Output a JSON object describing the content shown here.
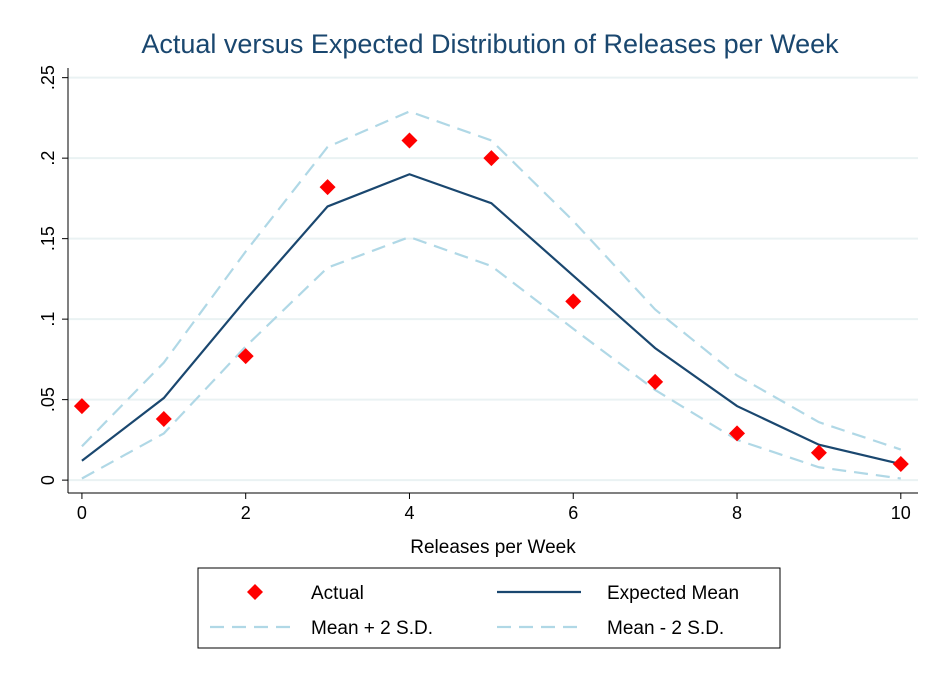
{
  "chart_data": {
    "type": "line",
    "title": "Actual versus Expected Distribution of Releases per Week",
    "x_label": "Releases per Week",
    "x": [
      0,
      1,
      2,
      3,
      4,
      5,
      6,
      7,
      8,
      9,
      10
    ],
    "series": [
      {
        "name": "Actual",
        "color": "#ff0000",
        "marker": "diamond",
        "values": [
          0.046,
          0.038,
          0.077,
          0.182,
          0.211,
          0.2,
          0.111,
          0.061,
          0.029,
          0.017,
          0.01
        ]
      },
      {
        "name": "Expected Mean",
        "color": "#1a476f",
        "dash": false,
        "values": [
          0.012,
          0.051,
          0.112,
          0.17,
          0.19,
          0.172,
          0.127,
          0.082,
          0.046,
          0.022,
          0.01
        ]
      },
      {
        "name": "Mean + 2 S.D.",
        "color": "#b0d8e6",
        "dash": true,
        "values": [
          0.021,
          0.073,
          0.142,
          0.207,
          0.229,
          0.211,
          0.161,
          0.106,
          0.065,
          0.036,
          0.019
        ]
      },
      {
        "name": "Mean - 2 S.D.",
        "color": "#b0d8e6",
        "dash": true,
        "values": [
          0.001,
          0.029,
          0.083,
          0.132,
          0.151,
          0.133,
          0.094,
          0.056,
          0.025,
          0.008,
          0.001
        ]
      }
    ],
    "xlim": [
      -0.17,
      10.21
    ],
    "ylim": [
      -0.008,
      0.256
    ],
    "xticks": [
      0,
      2,
      4,
      6,
      8,
      10
    ],
    "yticks": [
      0,
      {
        "value": 0.05,
        "label": ".05"
      },
      {
        "value": 0.1,
        "label": ".1"
      },
      {
        "value": 0.15,
        "label": ".15"
      },
      {
        "value": 0.2,
        "label": ".2"
      },
      {
        "value": 0.25,
        "label": ".25"
      }
    ],
    "grid": true
  }
}
